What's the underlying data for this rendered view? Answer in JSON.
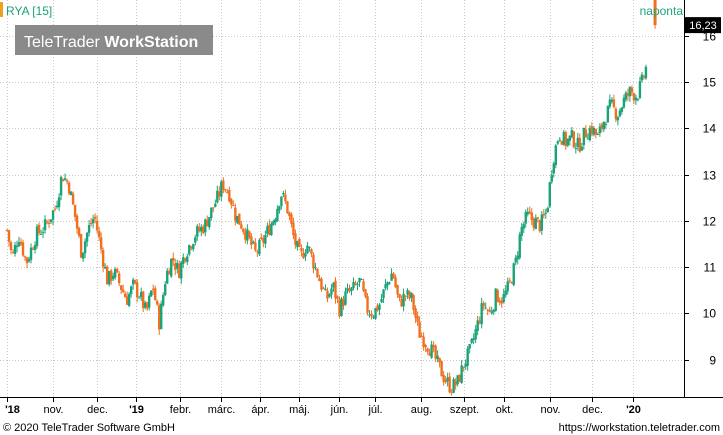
{
  "header": {
    "symbol": "RYA [15]",
    "interval": "naponta",
    "watermark_light": "TeleTrader ",
    "watermark_bold": "WorkStation"
  },
  "footer": {
    "copyright": "© 2020 TeleTrader Software GmbH",
    "url": "https://workstation.teletrader.com"
  },
  "colors": {
    "up": "#1aa37a",
    "down": "#f07020",
    "grid": "#c8c8c8",
    "axis": "#000000",
    "last_price_bg": "#000000",
    "last_price_fg": "#ffffff",
    "accent": "#f0a020",
    "symbol_text": "#1aa37a"
  },
  "chart_data": {
    "type": "candlestick",
    "series_name": "RYA [15]",
    "frequency": "naponta",
    "ylim": [
      8.3,
      16.6
    ],
    "yticks": [
      9,
      10,
      11,
      12,
      13,
      14,
      15,
      16
    ],
    "ytick_labels": [
      "9",
      "10",
      "11",
      "12",
      "13",
      "14",
      "15",
      "16"
    ],
    "xticks": [
      {
        "label": "'18",
        "t": 0.0
      },
      {
        "label": "nov.",
        "t": 0.0712
      },
      {
        "label": "dec.",
        "t": 0.1396
      },
      {
        "label": "'19",
        "t": 0.1998
      },
      {
        "label": "febr.",
        "t": 0.2676
      },
      {
        "label": "márc.",
        "t": 0.3303
      },
      {
        "label": "ápr.",
        "t": 0.3902
      },
      {
        "label": "máj.",
        "t": 0.4507
      },
      {
        "label": "jún.",
        "t": 0.5119
      },
      {
        "label": "júl.",
        "t": 0.5683
      },
      {
        "label": "aug.",
        "t": 0.6391
      },
      {
        "label": "szept.",
        "t": 0.7053
      },
      {
        "label": "okt.",
        "t": 0.7665
      },
      {
        "label": "nov.",
        "t": 0.8373
      },
      {
        "label": "dec.",
        "t": 0.9034
      },
      {
        "label": "'20",
        "t": 0.9662
      }
    ],
    "path_points": [
      [
        0.0,
        11.8
      ],
      [
        0.008,
        11.2
      ],
      [
        0.018,
        11.7
      ],
      [
        0.03,
        11.1
      ],
      [
        0.045,
        11.7
      ],
      [
        0.06,
        11.9
      ],
      [
        0.075,
        12.3
      ],
      [
        0.085,
        13.0
      ],
      [
        0.095,
        12.8
      ],
      [
        0.105,
        12.1
      ],
      [
        0.115,
        11.3
      ],
      [
        0.125,
        11.8
      ],
      [
        0.135,
        12.1
      ],
      [
        0.145,
        11.4
      ],
      [
        0.155,
        10.7
      ],
      [
        0.165,
        10.9
      ],
      [
        0.175,
        10.6
      ],
      [
        0.185,
        10.3
      ],
      [
        0.195,
        10.6
      ],
      [
        0.205,
        10.4
      ],
      [
        0.215,
        10.0
      ],
      [
        0.225,
        10.6
      ],
      [
        0.235,
        9.8
      ],
      [
        0.245,
        10.8
      ],
      [
        0.255,
        11.2
      ],
      [
        0.265,
        10.9
      ],
      [
        0.275,
        11.3
      ],
      [
        0.29,
        11.7
      ],
      [
        0.305,
        11.9
      ],
      [
        0.315,
        12.2
      ],
      [
        0.325,
        12.5
      ],
      [
        0.333,
        12.8
      ],
      [
        0.343,
        12.6
      ],
      [
        0.353,
        12.1
      ],
      [
        0.363,
        11.9
      ],
      [
        0.373,
        11.6
      ],
      [
        0.383,
        11.3
      ],
      [
        0.393,
        11.5
      ],
      [
        0.403,
        11.8
      ],
      [
        0.413,
        12.1
      ],
      [
        0.423,
        12.6
      ],
      [
        0.432,
        12.3
      ],
      [
        0.443,
        11.6
      ],
      [
        0.453,
        11.2
      ],
      [
        0.463,
        11.5
      ],
      [
        0.473,
        11.1
      ],
      [
        0.483,
        10.7
      ],
      [
        0.493,
        10.3
      ],
      [
        0.503,
        10.6
      ],
      [
        0.513,
        10.1
      ],
      [
        0.523,
        10.4
      ],
      [
        0.533,
        10.5
      ],
      [
        0.545,
        10.7
      ],
      [
        0.555,
        10.1
      ],
      [
        0.565,
        10.0
      ],
      [
        0.575,
        10.2
      ],
      [
        0.585,
        10.6
      ],
      [
        0.595,
        10.9
      ],
      [
        0.605,
        10.2
      ],
      [
        0.615,
        10.4
      ],
      [
        0.625,
        10.3
      ],
      [
        0.635,
        9.6
      ],
      [
        0.645,
        9.4
      ],
      [
        0.655,
        9.2
      ],
      [
        0.665,
        8.9
      ],
      [
        0.675,
        8.6
      ],
      [
        0.685,
        8.4
      ],
      [
        0.695,
        8.5
      ],
      [
        0.705,
        8.9
      ],
      [
        0.715,
        9.2
      ],
      [
        0.725,
        9.7
      ],
      [
        0.735,
        10.2
      ],
      [
        0.745,
        10.0
      ],
      [
        0.755,
        10.4
      ],
      [
        0.765,
        10.3
      ],
      [
        0.775,
        10.6
      ],
      [
        0.785,
        11.1
      ],
      [
        0.793,
        11.8
      ],
      [
        0.803,
        12.1
      ],
      [
        0.813,
        12.0
      ],
      [
        0.823,
        11.9
      ],
      [
        0.833,
        12.2
      ],
      [
        0.842,
        13.3
      ],
      [
        0.852,
        13.9
      ],
      [
        0.862,
        13.7
      ],
      [
        0.872,
        13.8
      ],
      [
        0.882,
        13.6
      ],
      [
        0.892,
        13.9
      ],
      [
        0.902,
        14.0
      ],
      [
        0.912,
        13.8
      ],
      [
        0.922,
        14.2
      ],
      [
        0.932,
        14.5
      ],
      [
        0.942,
        14.3
      ],
      [
        0.952,
        14.6
      ],
      [
        0.962,
        14.8
      ],
      [
        0.972,
        14.7
      ],
      [
        0.98,
        15.0
      ],
      [
        0.986,
        15.3
      ]
    ],
    "last_candle": {
      "open": 16.8,
      "high": 16.95,
      "low": 16.15,
      "close": 16.23
    },
    "last_price": "16,23"
  }
}
